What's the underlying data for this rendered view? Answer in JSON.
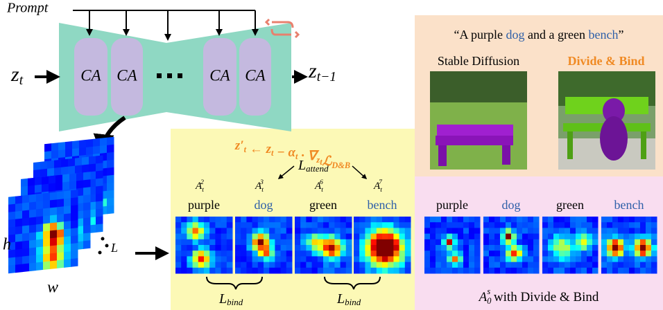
{
  "prompt": "Prompt",
  "input": {
    "main": "z",
    "sub": "t"
  },
  "output": {
    "main": "z",
    "sub": "t−1"
  },
  "blocks": [
    "CA",
    "CA",
    "CA",
    "CA"
  ],
  "stack": {
    "height": "h",
    "width": "w",
    "layers": "L"
  },
  "update": [
    {
      "text": "z′",
      "sub": "t"
    },
    {
      "text": " ← z",
      "sub": "t"
    },
    {
      "text": " − α",
      "sub": "t"
    },
    {
      "text": " · ∇",
      "sub": "z",
      "subsub": "t"
    },
    {
      "text": "ℒ",
      "sub": "D&B"
    }
  ],
  "attend": {
    "main": "L",
    "sub": "attend"
  },
  "tokens": [
    {
      "symbol": "A",
      "sub": "t",
      "sup": "2",
      "word": "purple",
      "color": "#000000"
    },
    {
      "symbol": "A",
      "sub": "t",
      "sup": "3",
      "word": "dog",
      "color": "#2e5fa8"
    },
    {
      "symbol": "A",
      "sub": "t",
      "sup": "6",
      "word": "green",
      "color": "#000000"
    },
    {
      "symbol": "A",
      "sub": "t",
      "sup": "7",
      "word": "bench",
      "color": "#2e5fa8"
    }
  ],
  "bind": [
    {
      "main": "L",
      "sub": "bind"
    },
    {
      "main": "L",
      "sub": "bind"
    }
  ],
  "quote": [
    {
      "text": "“A purple ",
      "color": "#000000"
    },
    {
      "text": "dog",
      "color": "#2e5fa8"
    },
    {
      "text": " and a green ",
      "color": "#000000"
    },
    {
      "text": "bench",
      "color": "#2e5fa8"
    },
    {
      "text": "”",
      "color": "#000000"
    }
  ],
  "labels": {
    "baseline": "Stable Diffusion",
    "ours": "Divide & Bind"
  },
  "final": {
    "words": [
      {
        "text": "purple",
        "color": "#000000"
      },
      {
        "text": "dog",
        "color": "#2e5fa8"
      },
      {
        "text": "green",
        "color": "#000000"
      },
      {
        "text": "bench",
        "color": "#2e5fa8"
      }
    ],
    "caption": {
      "main": "A",
      "sub": "0",
      "sup": "s",
      "rest": " with Divide & Bind"
    }
  }
}
